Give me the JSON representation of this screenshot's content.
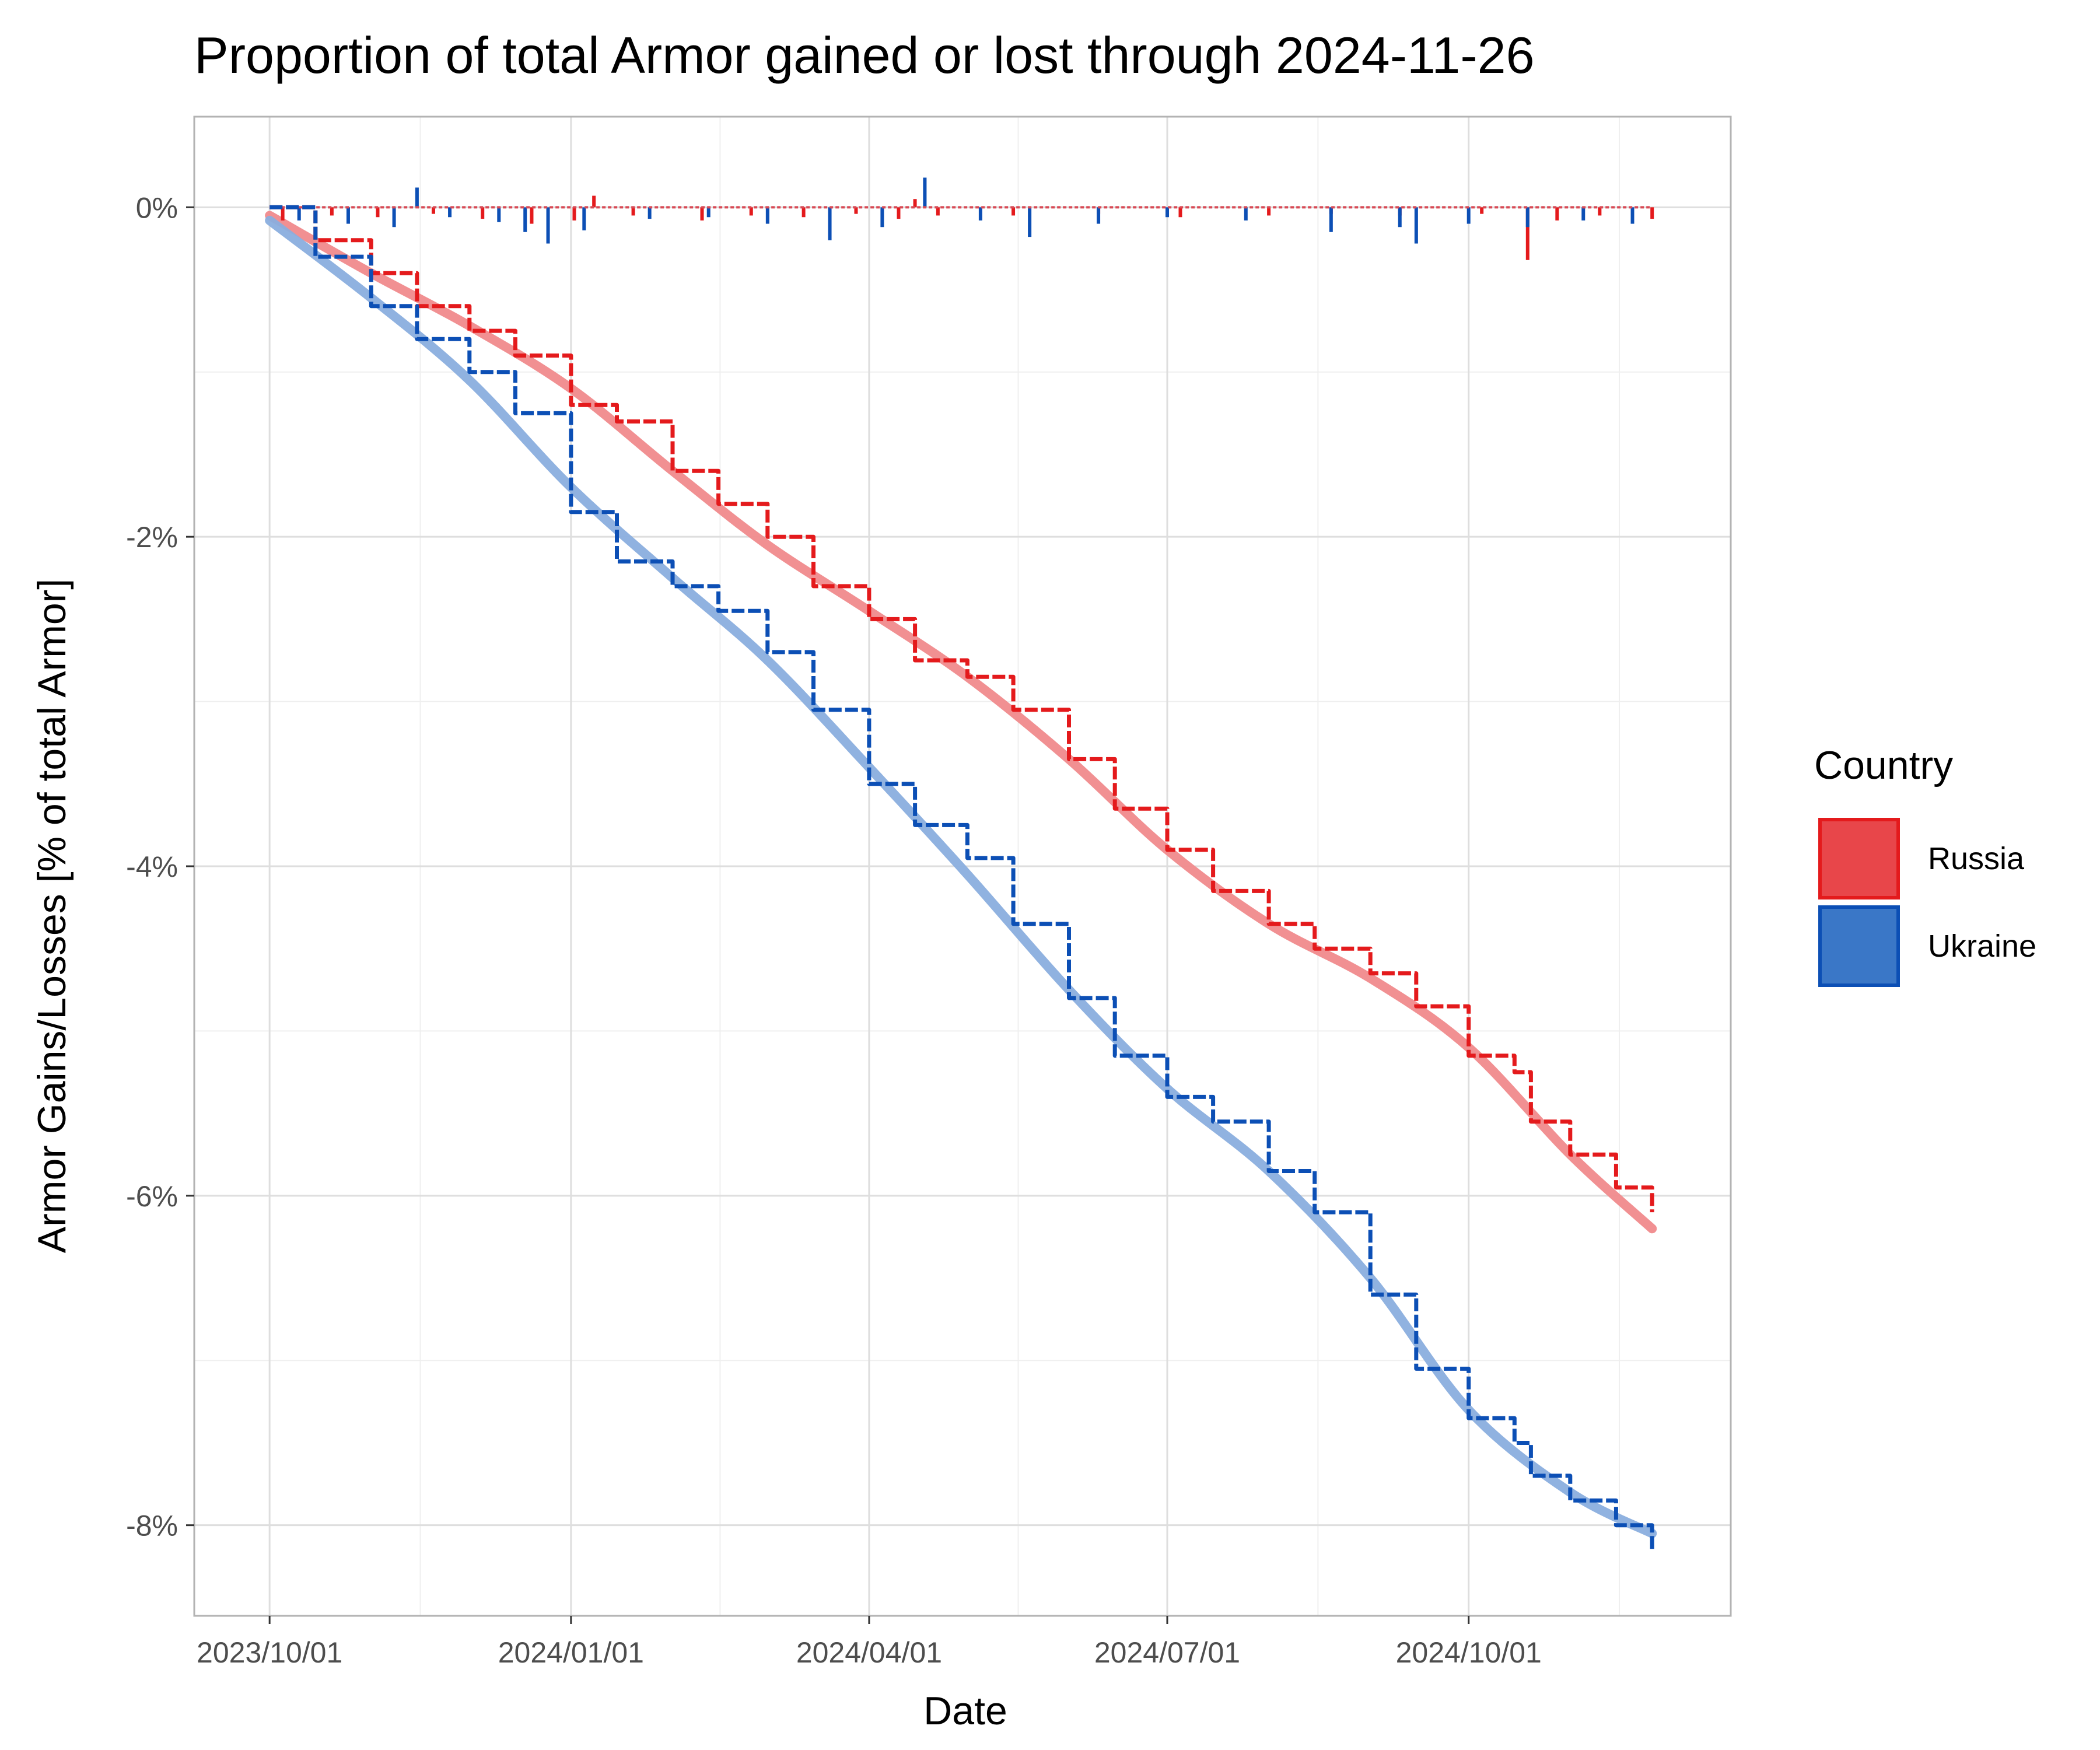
{
  "chart_data": {
    "type": "line",
    "title": "Proportion of total Armor gained or lost through 2024-11-26",
    "xlabel": "Date",
    "ylabel": "Armor Gains/Losses [% of total Armor]",
    "x_ticks": [
      "2023/10/01",
      "2024/01/01",
      "2024/04/01",
      "2024/07/01",
      "2024/10/01"
    ],
    "x_range": [
      "2023-09-08",
      "2024-12-20"
    ],
    "y_ticks": [
      0,
      -2,
      -4,
      -6,
      -8
    ],
    "y_tick_labels": [
      "0%",
      "-2%",
      "-4%",
      "-6%",
      "-8%"
    ],
    "ylim": [
      -8.55,
      0.55
    ],
    "grid": true,
    "legend": {
      "title": "Country",
      "position": "right"
    },
    "series": [
      {
        "name": "Russia",
        "color": "#E41A1C",
        "fill": "#E8464A",
        "smooth_color": "#F08A8C",
        "cumulative": [
          [
            "2023-10-01",
            0.0
          ],
          [
            "2023-10-15",
            -0.2
          ],
          [
            "2023-11-01",
            -0.4
          ],
          [
            "2023-11-15",
            -0.6
          ],
          [
            "2023-12-01",
            -0.75
          ],
          [
            "2023-12-15",
            -0.9
          ],
          [
            "2024-01-01",
            -1.2
          ],
          [
            "2024-01-15",
            -1.3
          ],
          [
            "2024-02-01",
            -1.6
          ],
          [
            "2024-02-15",
            -1.8
          ],
          [
            "2024-03-01",
            -2.0
          ],
          [
            "2024-03-15",
            -2.3
          ],
          [
            "2024-04-01",
            -2.5
          ],
          [
            "2024-04-15",
            -2.75
          ],
          [
            "2024-05-01",
            -2.85
          ],
          [
            "2024-05-15",
            -3.05
          ],
          [
            "2024-06-01",
            -3.35
          ],
          [
            "2024-06-15",
            -3.65
          ],
          [
            "2024-07-01",
            -3.9
          ],
          [
            "2024-07-15",
            -4.15
          ],
          [
            "2024-08-01",
            -4.35
          ],
          [
            "2024-08-15",
            -4.5
          ],
          [
            "2024-09-01",
            -4.65
          ],
          [
            "2024-09-15",
            -4.85
          ],
          [
            "2024-10-01",
            -5.15
          ],
          [
            "2024-10-15",
            -5.25
          ],
          [
            "2024-10-20",
            -5.55
          ],
          [
            "2024-11-01",
            -5.75
          ],
          [
            "2024-11-15",
            -5.95
          ],
          [
            "2024-11-26",
            -6.1
          ]
        ],
        "trend": [
          [
            "2023-10-01",
            -0.05
          ],
          [
            "2023-11-01",
            -0.4
          ],
          [
            "2023-12-01",
            -0.72
          ],
          [
            "2024-01-01",
            -1.1
          ],
          [
            "2024-02-01",
            -1.6
          ],
          [
            "2024-03-01",
            -2.05
          ],
          [
            "2024-04-01",
            -2.45
          ],
          [
            "2024-05-01",
            -2.85
          ],
          [
            "2024-06-01",
            -3.35
          ],
          [
            "2024-07-01",
            -3.9
          ],
          [
            "2024-08-01",
            -4.35
          ],
          [
            "2024-09-01",
            -4.68
          ],
          [
            "2024-10-01",
            -5.1
          ],
          [
            "2024-11-01",
            -5.75
          ],
          [
            "2024-11-26",
            -6.2
          ]
        ],
        "daily": [
          [
            "2023-10-05",
            -0.08
          ],
          [
            "2023-10-20",
            -0.05
          ],
          [
            "2023-11-03",
            -0.06
          ],
          [
            "2023-11-20",
            -0.04
          ],
          [
            "2023-12-05",
            -0.07
          ],
          [
            "2023-12-20",
            -0.1
          ],
          [
            "2024-01-02",
            -0.08
          ],
          [
            "2024-01-08",
            0.07
          ],
          [
            "2024-01-20",
            -0.05
          ],
          [
            "2024-02-10",
            -0.08
          ],
          [
            "2024-02-25",
            -0.05
          ],
          [
            "2024-03-12",
            -0.06
          ],
          [
            "2024-03-28",
            -0.04
          ],
          [
            "2024-04-10",
            -0.07
          ],
          [
            "2024-04-15",
            0.05
          ],
          [
            "2024-04-22",
            -0.05
          ],
          [
            "2024-05-15",
            -0.05
          ],
          [
            "2024-06-10",
            -0.04
          ],
          [
            "2024-07-05",
            -0.06
          ],
          [
            "2024-08-01",
            -0.05
          ],
          [
            "2024-08-20",
            -0.04
          ],
          [
            "2024-09-10",
            -0.05
          ],
          [
            "2024-10-05",
            -0.04
          ],
          [
            "2024-10-19",
            -0.32
          ],
          [
            "2024-10-28",
            -0.08
          ],
          [
            "2024-11-10",
            -0.05
          ],
          [
            "2024-11-26",
            -0.07
          ]
        ]
      },
      {
        "name": "Ukraine",
        "color": "#0C4FB5",
        "fill": "#3A77C7",
        "smooth_color": "#8AAEDE",
        "cumulative": [
          [
            "2023-10-01",
            0.0
          ],
          [
            "2023-10-15",
            -0.3
          ],
          [
            "2023-11-01",
            -0.6
          ],
          [
            "2023-11-15",
            -0.8
          ],
          [
            "2023-12-01",
            -1.0
          ],
          [
            "2023-12-15",
            -1.25
          ],
          [
            "2024-01-01",
            -1.85
          ],
          [
            "2024-01-15",
            -2.15
          ],
          [
            "2024-02-01",
            -2.3
          ],
          [
            "2024-02-15",
            -2.45
          ],
          [
            "2024-03-01",
            -2.7
          ],
          [
            "2024-03-15",
            -3.05
          ],
          [
            "2024-04-01",
            -3.5
          ],
          [
            "2024-04-15",
            -3.75
          ],
          [
            "2024-05-01",
            -3.95
          ],
          [
            "2024-05-15",
            -4.35
          ],
          [
            "2024-06-01",
            -4.8
          ],
          [
            "2024-06-15",
            -5.15
          ],
          [
            "2024-07-01",
            -5.4
          ],
          [
            "2024-07-15",
            -5.55
          ],
          [
            "2024-08-01",
            -5.85
          ],
          [
            "2024-08-15",
            -6.1
          ],
          [
            "2024-09-01",
            -6.6
          ],
          [
            "2024-09-15",
            -7.05
          ],
          [
            "2024-10-01",
            -7.35
          ],
          [
            "2024-10-15",
            -7.5
          ],
          [
            "2024-10-20",
            -7.7
          ],
          [
            "2024-11-01",
            -7.85
          ],
          [
            "2024-11-15",
            -8.0
          ],
          [
            "2024-11-26",
            -8.15
          ]
        ],
        "trend": [
          [
            "2023-10-01",
            -0.08
          ],
          [
            "2023-11-01",
            -0.55
          ],
          [
            "2023-12-01",
            -1.05
          ],
          [
            "2024-01-01",
            -1.7
          ],
          [
            "2024-02-01",
            -2.25
          ],
          [
            "2024-03-01",
            -2.75
          ],
          [
            "2024-04-01",
            -3.4
          ],
          [
            "2024-05-01",
            -4.05
          ],
          [
            "2024-06-01",
            -4.75
          ],
          [
            "2024-07-01",
            -5.35
          ],
          [
            "2024-08-01",
            -5.85
          ],
          [
            "2024-09-01",
            -6.5
          ],
          [
            "2024-10-01",
            -7.3
          ],
          [
            "2024-11-01",
            -7.8
          ],
          [
            "2024-11-26",
            -8.05
          ]
        ],
        "daily": [
          [
            "2023-10-10",
            -0.08
          ],
          [
            "2023-10-25",
            -0.1
          ],
          [
            "2023-11-08",
            -0.12
          ],
          [
            "2023-11-15",
            0.12
          ],
          [
            "2023-11-25",
            -0.06
          ],
          [
            "2023-12-10",
            -0.09
          ],
          [
            "2023-12-18",
            -0.15
          ],
          [
            "2023-12-25",
            -0.22
          ],
          [
            "2024-01-05",
            -0.14
          ],
          [
            "2024-01-25",
            -0.07
          ],
          [
            "2024-02-12",
            -0.06
          ],
          [
            "2024-03-01",
            -0.1
          ],
          [
            "2024-03-20",
            -0.2
          ],
          [
            "2024-04-05",
            -0.12
          ],
          [
            "2024-04-18",
            0.18
          ],
          [
            "2024-05-05",
            -0.08
          ],
          [
            "2024-05-20",
            -0.18
          ],
          [
            "2024-06-10",
            -0.1
          ],
          [
            "2024-07-01",
            -0.06
          ],
          [
            "2024-07-25",
            -0.08
          ],
          [
            "2024-08-20",
            -0.15
          ],
          [
            "2024-09-10",
            -0.12
          ],
          [
            "2024-09-15",
            -0.22
          ],
          [
            "2024-10-01",
            -0.1
          ],
          [
            "2024-10-19",
            -0.12
          ],
          [
            "2024-11-05",
            -0.08
          ],
          [
            "2024-11-20",
            -0.1
          ]
        ]
      }
    ]
  }
}
